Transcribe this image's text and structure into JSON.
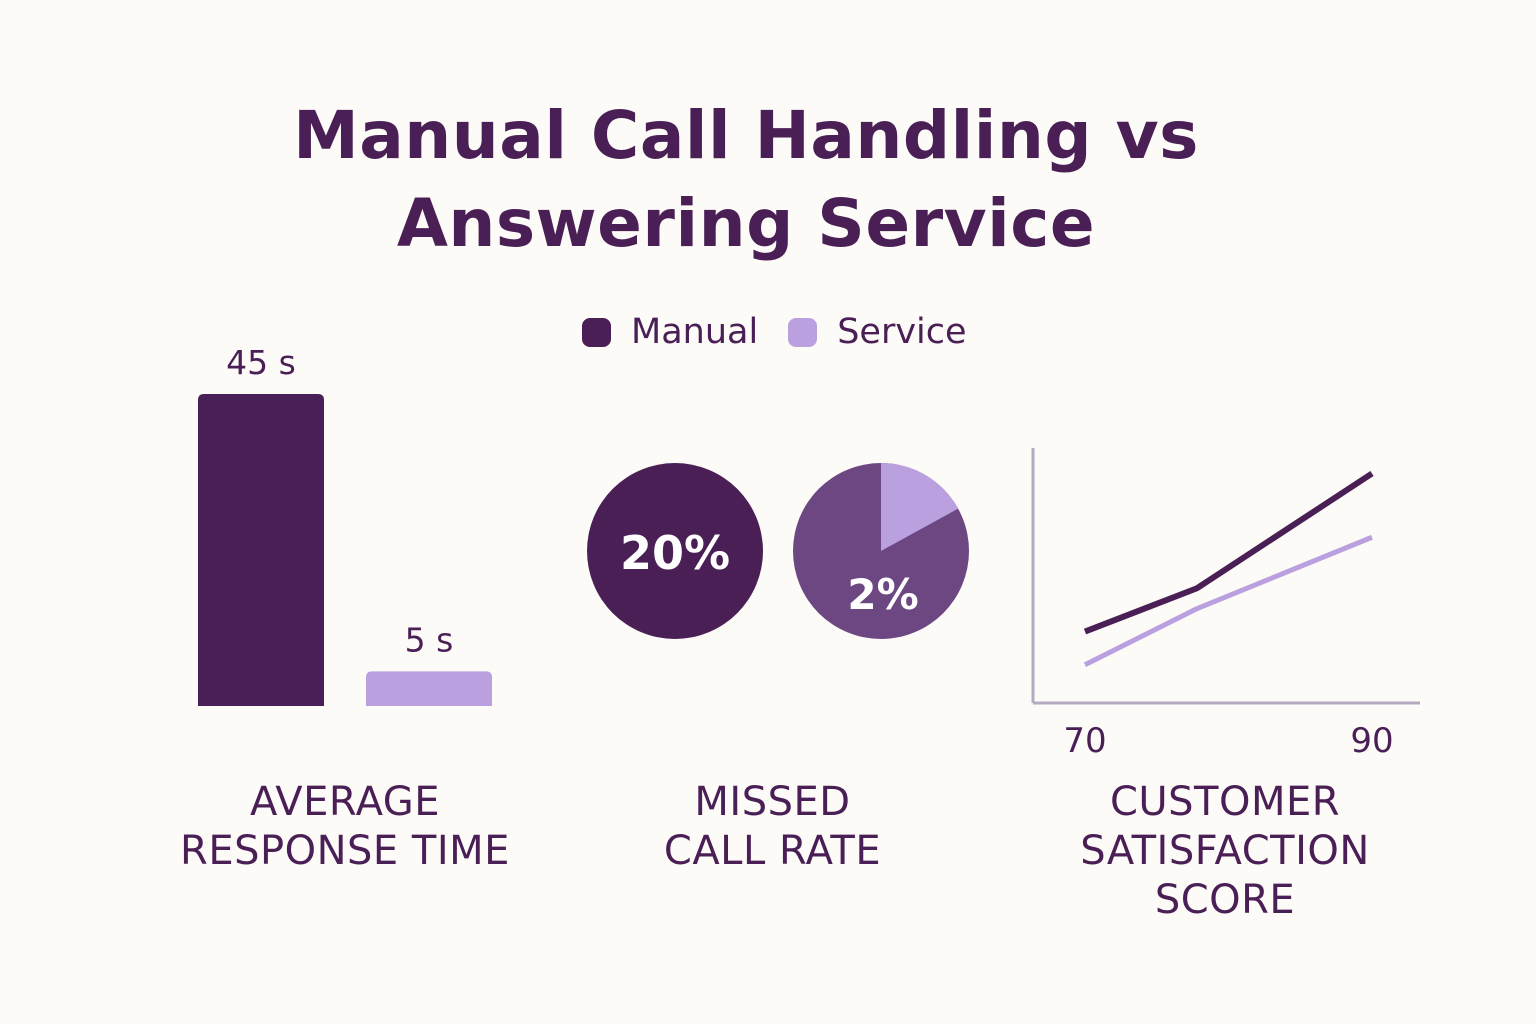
{
  "title_lines": [
    "Manual Call Handling vs",
    "Answering Service"
  ],
  "legend": [
    {
      "label": "Manual",
      "color": "#4a1f56"
    },
    {
      "label": "Service",
      "color": "#bba0df"
    }
  ],
  "colors": {
    "manual": "#4a1f56",
    "service": "#bba0df",
    "service_pie_base": "#6c4782",
    "text": "#4a1f56",
    "axis": "#b6aac1",
    "background": "#fdfbf8"
  },
  "chart_data": [
    {
      "type": "bar",
      "categories": [
        "Manual",
        "Service"
      ],
      "values": [
        45,
        5
      ],
      "unit": "s",
      "data_labels": [
        "45 s",
        "5 s"
      ],
      "title_lines": [
        "AVERAGE",
        "RESPONSE TIME"
      ],
      "ylim": [
        0,
        45
      ]
    },
    {
      "type": "pie",
      "series": [
        {
          "name": "Manual",
          "value": 20,
          "label": "20%",
          "shown_as": "full circle"
        },
        {
          "name": "Service",
          "value": 2,
          "label": "2%",
          "highlight_fraction": 0.17
        }
      ],
      "title_lines": [
        "MISSED",
        "CALL RATE"
      ]
    },
    {
      "type": "line",
      "x": [
        70,
        80,
        90
      ],
      "xticks": [
        "70",
        "90"
      ],
      "xlim": [
        70,
        90
      ],
      "series": [
        {
          "name": "Manual",
          "values": [
            0.28,
            0.45,
            0.9
          ]
        },
        {
          "name": "Service",
          "values": [
            0.15,
            0.37,
            0.65
          ]
        }
      ],
      "ylim": [
        0,
        1
      ],
      "grid": false,
      "title_lines": [
        "CUSTOMER",
        "SATISFACTION",
        "SCORE"
      ]
    }
  ]
}
